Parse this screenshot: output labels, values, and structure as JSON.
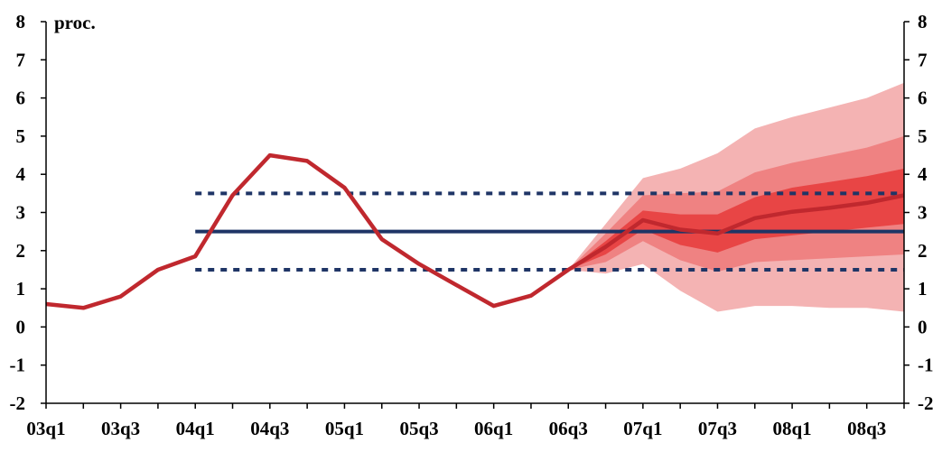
{
  "chart_data": {
    "type": "line",
    "unit_label": "proc.",
    "ylim": [
      -2,
      8
    ],
    "y_ticks": [
      "8",
      "7",
      "6",
      "5",
      "4",
      "3",
      "2",
      "1",
      "0",
      "-1",
      "-2"
    ],
    "x": [
      "03q1",
      "03q2",
      "03q3",
      "03q4",
      "04q1",
      "04q2",
      "04q3",
      "04q4",
      "05q1",
      "05q2",
      "05q3",
      "05q4",
      "06q1",
      "06q2",
      "06q3",
      "06q4",
      "07q1",
      "07q2",
      "07q3",
      "07q4",
      "08q1",
      "08q2",
      "08q3",
      "08q4"
    ],
    "x_tick_labels": [
      "03q1",
      "03q3",
      "04q1",
      "04q3",
      "05q1",
      "05q3",
      "06q1",
      "06q3",
      "07q1",
      "07q3",
      "08q1",
      "08q3"
    ],
    "target": {
      "value": 2.5,
      "from": "04q1",
      "to": "08q4",
      "color": "#1f3566"
    },
    "tolerance_band": {
      "upper": 3.5,
      "lower": 1.5,
      "from": "04q1",
      "to": "08q4",
      "color": "#1f3566"
    },
    "inflation": {
      "color": "#c0282e",
      "values": [
        0.6,
        0.5,
        0.8,
        1.5,
        1.85,
        3.45,
        4.5,
        4.35,
        3.65,
        2.3,
        1.65,
        1.1,
        0.55,
        0.82,
        1.5,
        2.1,
        2.8,
        2.55,
        2.45,
        2.85,
        3.02,
        3.12,
        3.25,
        3.45
      ]
    },
    "fan_chart": {
      "start_index": 14,
      "center": [
        1.5,
        2.1,
        2.8,
        2.55,
        2.45,
        2.85,
        3.02,
        3.12,
        3.25,
        3.45
      ],
      "bands": [
        {
          "color": "#f4b3b3",
          "upper": [
            1.5,
            2.7,
            3.9,
            4.15,
            4.55,
            5.2,
            5.5,
            5.75,
            6.0,
            6.4
          ],
          "lower": [
            1.5,
            1.4,
            1.65,
            0.95,
            0.4,
            0.55,
            0.55,
            0.5,
            0.5,
            0.4
          ]
        },
        {
          "color": "#ef8282",
          "upper": [
            1.5,
            2.45,
            3.45,
            3.5,
            3.55,
            4.05,
            4.3,
            4.5,
            4.7,
            5.0
          ],
          "lower": [
            1.5,
            1.7,
            2.25,
            1.75,
            1.45,
            1.7,
            1.75,
            1.8,
            1.85,
            1.9
          ]
        },
        {
          "color": "#e84545",
          "upper": [
            1.5,
            2.25,
            3.05,
            2.95,
            2.95,
            3.4,
            3.65,
            3.8,
            3.95,
            4.15
          ],
          "lower": [
            1.5,
            1.9,
            2.55,
            2.15,
            1.95,
            2.3,
            2.4,
            2.5,
            2.6,
            2.7
          ]
        }
      ]
    }
  }
}
